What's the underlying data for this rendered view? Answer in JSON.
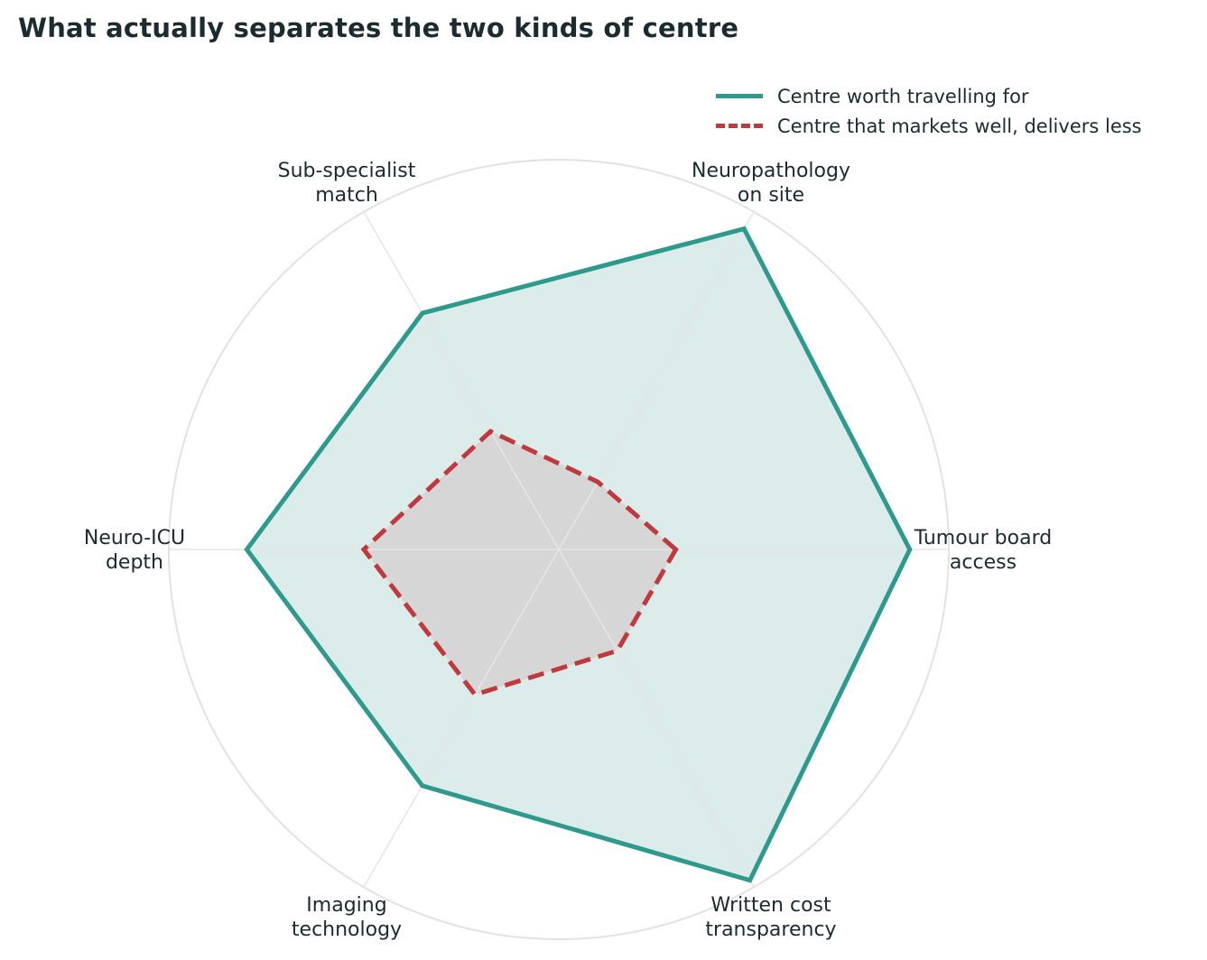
{
  "chart_data": {
    "type": "radar",
    "title": "What actually separates the two kinds of centre",
    "axes": [
      {
        "line1": "Tumour board",
        "line2": "access"
      },
      {
        "line1": "Neuropathology",
        "line2": "on site"
      },
      {
        "line1": "Sub-specialist",
        "line2": "match"
      },
      {
        "line1": "Neuro-ICU",
        "line2": "depth"
      },
      {
        "line1": "Imaging",
        "line2": "technology"
      },
      {
        "line1": "Written cost",
        "line2": "transparency"
      }
    ],
    "rlim": [
      0,
      10
    ],
    "grid": true,
    "legend_position": "top-right",
    "series": [
      {
        "name": "Centre worth travelling for",
        "values": [
          9,
          9.5,
          7,
          8,
          7,
          9.8
        ],
        "color": "#2e9a8d",
        "fill": "#dbecea",
        "style": "solid"
      },
      {
        "name": "Centre that markets well, delivers less",
        "values": [
          3,
          2,
          3.5,
          5,
          4.3,
          3
        ],
        "color": "#c0393d",
        "fill": "#d6d6d6",
        "style": "dashed"
      }
    ]
  }
}
